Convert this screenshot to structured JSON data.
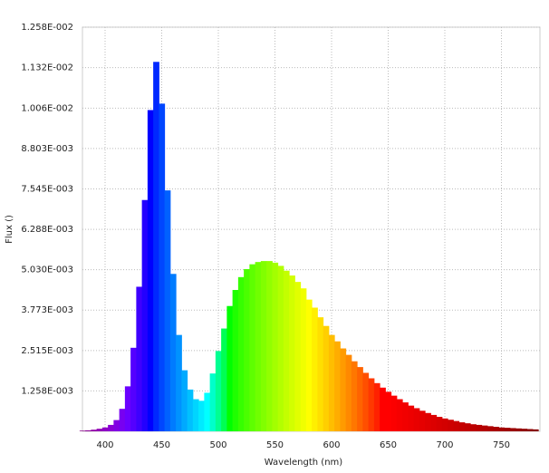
{
  "chart_data": {
    "type": "spectrum",
    "xlabel": "Wavelength (nm)",
    "ylabel": "Flux ()",
    "x": [
      380,
      385,
      390,
      395,
      400,
      405,
      410,
      415,
      420,
      425,
      430,
      435,
      440,
      445,
      450,
      455,
      460,
      465,
      470,
      475,
      480,
      485,
      490,
      495,
      500,
      505,
      510,
      515,
      520,
      525,
      530,
      535,
      540,
      545,
      550,
      555,
      560,
      565,
      570,
      575,
      580,
      585,
      590,
      595,
      600,
      605,
      610,
      615,
      620,
      625,
      630,
      635,
      640,
      645,
      650,
      655,
      660,
      665,
      670,
      675,
      680,
      685,
      690,
      695,
      700,
      705,
      710,
      715,
      720,
      725,
      730,
      735,
      740,
      745,
      750,
      755,
      760,
      765,
      770,
      775,
      780
    ],
    "values": [
      2e-05,
      3e-05,
      5e-05,
      8e-05,
      0.00012,
      0.0002,
      0.00035,
      0.0007,
      0.0014,
      0.0026,
      0.0045,
      0.0072,
      0.01,
      0.0115,
      0.0102,
      0.0075,
      0.0049,
      0.003,
      0.0019,
      0.0013,
      0.001,
      0.00095,
      0.0012,
      0.0018,
      0.0025,
      0.0032,
      0.0039,
      0.0044,
      0.0048,
      0.00505,
      0.0052,
      0.00527,
      0.0053,
      0.0053,
      0.00525,
      0.00515,
      0.005,
      0.00485,
      0.00465,
      0.00445,
      0.0041,
      0.00385,
      0.00355,
      0.00328,
      0.003,
      0.0028,
      0.00258,
      0.00238,
      0.00218,
      0.002,
      0.00182,
      0.00165,
      0.0015,
      0.00136,
      0.00123,
      0.00111,
      0.001,
      0.0009,
      0.0008,
      0.00072,
      0.00064,
      0.00057,
      0.00051,
      0.00045,
      0.0004,
      0.00036,
      0.00032,
      0.00028,
      0.00025,
      0.00022,
      0.0002,
      0.00018,
      0.00016,
      0.00014,
      0.00012,
      0.00011,
      0.0001,
      9e-05,
      8e-05,
      7e-05,
      6e-05
    ],
    "xlim": [
      380,
      784
    ],
    "xticks": [
      400,
      450,
      500,
      550,
      600,
      650,
      700,
      750
    ],
    "ylim": [
      0,
      0.01258
    ],
    "yticks": [
      {
        "value": 0.001258,
        "label": "1.258E-003"
      },
      {
        "value": 0.002515,
        "label": "2.515E-003"
      },
      {
        "value": 0.003773,
        "label": "3.773E-003"
      },
      {
        "value": 0.00503,
        "label": "5.030E-003"
      },
      {
        "value": 0.006288,
        "label": "6.288E-003"
      },
      {
        "value": 0.007545,
        "label": "7.545E-003"
      },
      {
        "value": 0.008803,
        "label": "8.803E-003"
      },
      {
        "value": 0.01006,
        "label": "1.006E-002"
      },
      {
        "value": 0.01132,
        "label": "1.132E-002"
      },
      {
        "value": 0.01258,
        "label": "1.258E-002"
      }
    ],
    "grid": true
  }
}
